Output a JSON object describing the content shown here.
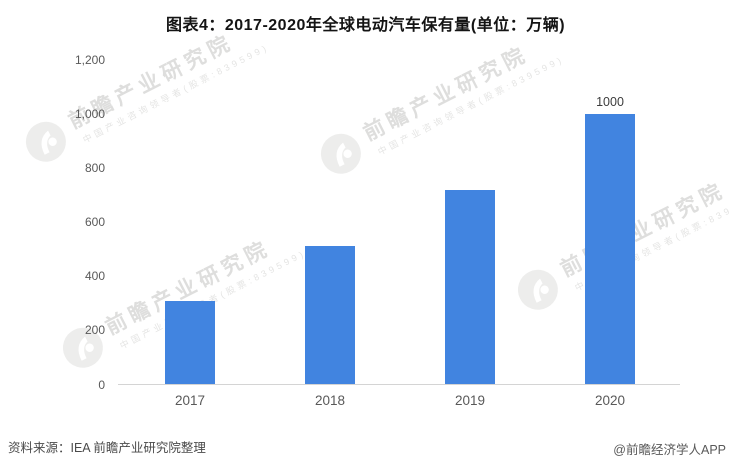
{
  "title": "图表4：2017-2020年全球电动汽车保有量(单位：万辆)",
  "chart_data": {
    "type": "bar",
    "title": "图表4：2017-2020年全球电动汽车保有量(单位：万辆)",
    "unit": "万辆",
    "categories": [
      "2017",
      "2018",
      "2019",
      "2020"
    ],
    "values": [
      310,
      510,
      720,
      1000
    ],
    "bar_labels": [
      "",
      "",
      "",
      "1000"
    ],
    "xlabel": "",
    "ylabel": "",
    "ylim": [
      0,
      1200
    ],
    "ytick_values": [
      0,
      200,
      400,
      600,
      800,
      1000,
      1200
    ],
    "ytick_labels": [
      "0",
      "200",
      "400",
      "600",
      "800",
      "1,000",
      "1,200"
    ],
    "bar_color": "#4184E0",
    "grid": false,
    "legend_position": "none"
  },
  "footer": {
    "source": "资料来源：IEA 前瞻产业研究院整理",
    "credit": "@前瞻经济学人APP"
  },
  "watermark": {
    "brand": "前瞻产业研究院",
    "tagline": "中国产业咨询领导者(股票:839599)"
  }
}
